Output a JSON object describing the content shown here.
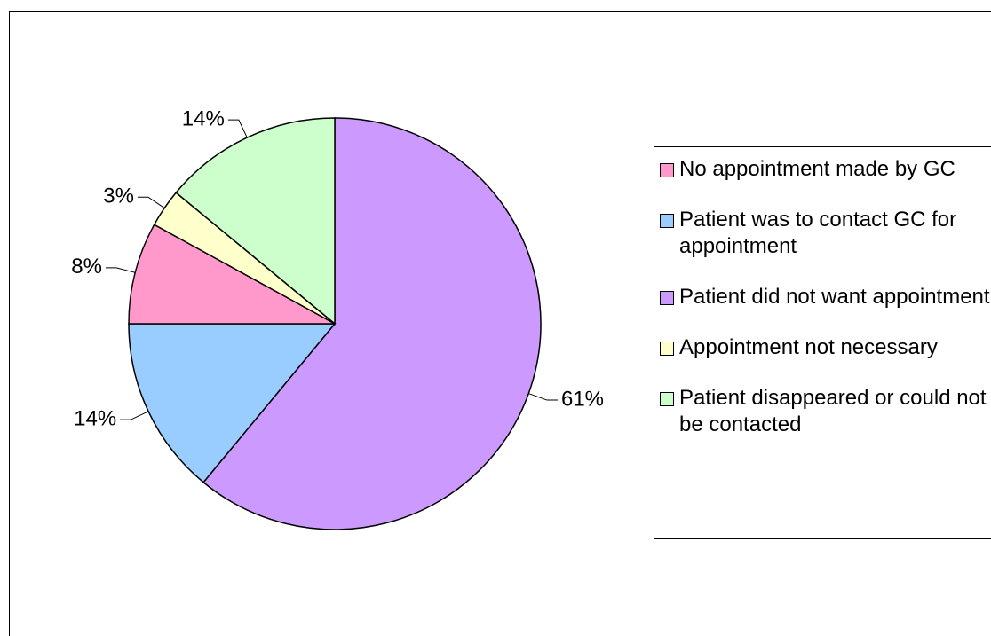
{
  "chart_data": {
    "type": "pie",
    "categories": [
      "No appointment made by GC",
      "Patient was to contact GC for appointment",
      "Patient did not want appointment",
      "Appointment not necessary",
      "Patient disappeared or could not be contacted"
    ],
    "values": [
      8,
      14,
      61,
      3,
      14
    ],
    "value_labels": [
      "8%",
      "14%",
      "61%",
      "3%",
      "14%"
    ],
    "colors": [
      "#ff99cc",
      "#99ccff",
      "#cc99ff",
      "#ffffcc",
      "#ccffcc"
    ],
    "slice_order": [
      2,
      1,
      0,
      3,
      4
    ],
    "legend": "right"
  }
}
